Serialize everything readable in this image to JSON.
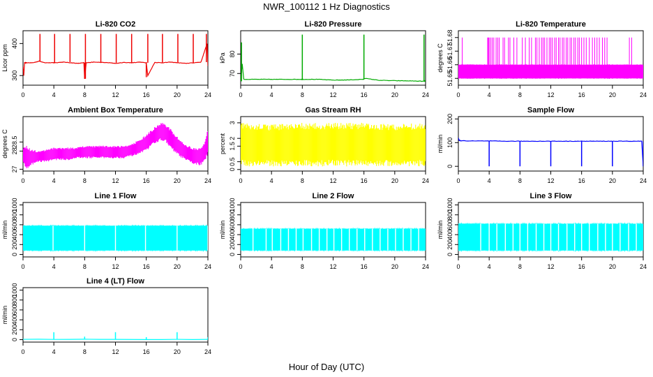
{
  "page": {
    "title": "NWR_100112  1 Hz Diagnostics",
    "x_title": "Hour of Day (UTC)"
  },
  "chart_data": [
    {
      "type": "line",
      "title": "Li-820 CO2",
      "ylabel": "Licor ppm",
      "color": "#ee0000",
      "xlim": [
        0,
        24
      ],
      "ylim": [
        270,
        440
      ],
      "yticks": [
        300,
        400
      ],
      "xticks": [
        0,
        4,
        8,
        12,
        16,
        20,
        24
      ],
      "x": [
        0,
        0.1,
        0.2,
        0.4,
        1.3,
        2.1,
        2.9,
        3.9,
        4.1,
        5.2,
        6.2,
        7.1,
        7.9,
        8.0,
        8.2,
        9.2,
        10.2,
        11.2,
        12.1,
        13.1,
        14.1,
        15.1,
        16.0,
        16.2,
        17.1,
        18.1,
        19.1,
        20.1,
        21.1,
        22.1,
        23.1,
        23.9,
        24
      ],
      "y": [
        330,
        300,
        340,
        340,
        340,
        345,
        340,
        340,
        340,
        342,
        340,
        338,
        340,
        290,
        340,
        342,
        341,
        340,
        338,
        341,
        340,
        342,
        340,
        300,
        341,
        340,
        342,
        340,
        338,
        340,
        342,
        400,
        330
      ],
      "spikes": [
        {
          "x": 0.15,
          "y": 300
        },
        {
          "x": 2.2,
          "y": 430
        },
        {
          "x": 4.1,
          "y": 430
        },
        {
          "x": 6.1,
          "y": 430
        },
        {
          "x": 8.1,
          "y": 430
        },
        {
          "x": 10.1,
          "y": 430
        },
        {
          "x": 12.1,
          "y": 430
        },
        {
          "x": 14.1,
          "y": 430
        },
        {
          "x": 16.2,
          "y": 430
        },
        {
          "x": 18.1,
          "y": 430
        },
        {
          "x": 20.1,
          "y": 430
        },
        {
          "x": 22.1,
          "y": 430
        },
        {
          "x": 23.8,
          "y": 430
        },
        {
          "x": 8.0,
          "y": 290
        },
        {
          "x": 16.0,
          "y": 295
        }
      ]
    },
    {
      "type": "line",
      "title": "Li-820 Pressure",
      "ylabel": "kPa",
      "color": "#00aa00",
      "xlim": [
        0,
        24
      ],
      "ylim": [
        64,
        92
      ],
      "yticks": [
        70,
        80
      ],
      "xticks": [
        0,
        4,
        8,
        12,
        16,
        20,
        24
      ],
      "x": [
        0,
        0.2,
        0.4,
        2,
        4,
        6,
        7.9,
        8.1,
        10,
        12,
        14,
        15.9,
        16.1,
        18,
        20,
        22,
        23.8,
        24
      ],
      "y": [
        66,
        75,
        67,
        67,
        67,
        67,
        67,
        67,
        67,
        66.6,
        66.7,
        67,
        67.5,
        66.5,
        66.3,
        66.2,
        66.0,
        66.2
      ],
      "spikes": [
        {
          "x": 0.1,
          "y": 86
        },
        {
          "x": 8.0,
          "y": 90
        },
        {
          "x": 16.0,
          "y": 90
        },
        {
          "x": 23.8,
          "y": 90
        }
      ]
    },
    {
      "type": "area",
      "title": "Li-820 Temperature",
      "ylabel": "degrees C",
      "color": "#ff00ff",
      "xlim": [
        0,
        24
      ],
      "ylim": [
        51.645,
        51.685
      ],
      "yticks": [
        51.65,
        51.66,
        51.67,
        51.68
      ],
      "xticks": [
        0,
        4,
        8,
        12,
        16,
        20,
        24
      ],
      "band": {
        "x_start": 0,
        "x_end": 24,
        "low": 51.65,
        "high": 51.66
      },
      "spike_top": 51.68,
      "spike_hours": [
        0.5,
        3.8,
        3.9,
        4.0,
        4.2,
        4.4,
        4.6,
        4.9,
        5.1,
        5.3,
        5.8,
        6.0,
        6.5,
        6.7,
        7.2,
        7.6,
        8.3,
        8.7,
        9.2,
        9.5,
        10.0,
        10.2,
        10.5,
        10.8,
        11.0,
        11.2,
        11.5,
        11.8,
        12.0,
        12.2,
        12.5,
        12.7,
        13.0,
        13.2,
        13.5,
        13.7,
        14.0,
        14.2,
        14.5,
        14.7,
        15.0,
        15.2,
        15.5,
        15.7,
        16.0,
        16.3,
        16.6,
        17.0,
        17.4,
        17.7,
        18.0,
        18.3,
        18.7,
        19.0,
        19.3,
        22.2,
        22.5
      ]
    },
    {
      "type": "area",
      "title": "Ambient Box Temperature",
      "ylabel": "degrees C",
      "color": "#ff00ff",
      "xlim": [
        0,
        24
      ],
      "ylim": [
        26.9,
        29.9
      ],
      "yticks": [
        27.0,
        28.0,
        28.5
      ],
      "xticks": [
        0,
        4,
        8,
        12,
        16,
        20,
        24
      ],
      "x": [
        0,
        0.5,
        1,
        2,
        3,
        4,
        5,
        6,
        7,
        8,
        9,
        10,
        11,
        12,
        13,
        14,
        15,
        16,
        17,
        18,
        18.5,
        19,
        20,
        21,
        22,
        23,
        23.6,
        24
      ],
      "low": [
        27.3,
        27.0,
        27.2,
        27.4,
        27.4,
        27.5,
        27.5,
        27.5,
        27.6,
        27.6,
        27.6,
        27.6,
        27.6,
        27.6,
        27.6,
        27.7,
        27.8,
        28.0,
        28.4,
        28.6,
        28.5,
        28.2,
        27.8,
        27.5,
        27.3,
        27.2,
        27.4,
        27.8
      ],
      "high": [
        28.2,
        28.3,
        28.1,
        28.0,
        28.1,
        28.2,
        28.2,
        28.2,
        28.2,
        28.3,
        28.3,
        28.3,
        28.3,
        28.3,
        28.3,
        28.4,
        28.6,
        28.9,
        29.3,
        29.6,
        29.5,
        29.3,
        28.8,
        28.4,
        28.2,
        28.2,
        28.5,
        29.3
      ]
    },
    {
      "type": "area",
      "title": "Gas Stream RH",
      "ylabel": "percent",
      "color": "#ffff00",
      "xlim": [
        0,
        24
      ],
      "ylim": [
        -0.1,
        3.4
      ],
      "yticks": [
        0.0,
        0.5,
        1.5,
        2.0,
        3.0
      ],
      "xticks": [
        0,
        4,
        8,
        12,
        16,
        20,
        24
      ],
      "x": [
        0,
        4,
        8,
        12,
        16,
        20,
        24
      ],
      "low": [
        0.2,
        0.2,
        0.2,
        0.2,
        0.2,
        0.2,
        0.2
      ],
      "high": [
        3.0,
        2.9,
        3.0,
        3.0,
        3.0,
        2.9,
        3.0
      ]
    },
    {
      "type": "line",
      "title": "Sample Flow",
      "ylabel": "ml/min",
      "color": "#0000ff",
      "xlim": [
        0,
        24
      ],
      "ylim": [
        -20,
        210
      ],
      "yticks": [
        0,
        100,
        200
      ],
      "xticks": [
        0,
        4,
        8,
        12,
        16,
        20,
        24
      ],
      "x": [
        0,
        0.1,
        0.3,
        2,
        4,
        6,
        8,
        10,
        12,
        14,
        16,
        18,
        20,
        22,
        23.8,
        24
      ],
      "y": [
        120,
        110,
        108,
        107,
        107,
        106,
        106,
        106,
        106,
        106,
        106,
        106,
        106,
        106,
        106,
        0
      ],
      "spikes": [
        {
          "x": 4.0,
          "y": 0
        },
        {
          "x": 8.0,
          "y": 0
        },
        {
          "x": 12.0,
          "y": 0
        },
        {
          "x": 16.0,
          "y": 0
        },
        {
          "x": 20.0,
          "y": 0
        },
        {
          "x": 24.0,
          "y": 0
        }
      ]
    },
    {
      "type": "area",
      "title": "Line 1 Flow",
      "ylabel": "ml/min",
      "color": "#00ffff",
      "xlim": [
        0,
        24
      ],
      "ylim": [
        -50,
        1050
      ],
      "yticks": [
        0,
        200,
        400,
        600,
        800,
        1000
      ],
      "xticks": [
        0,
        4,
        8,
        12,
        16,
        20,
        24
      ],
      "band": {
        "x_start": 0,
        "x_end": 24,
        "low": 80,
        "high": 580
      },
      "gaps": [
        3.9,
        8.0,
        12.0,
        15.9,
        20.0,
        24.0
      ]
    },
    {
      "type": "area",
      "title": "Line 2 Flow",
      "ylabel": "ml/min",
      "color": "#00ffff",
      "xlim": [
        0,
        24
      ],
      "ylim": [
        -50,
        1050
      ],
      "yticks": [
        0,
        200,
        400,
        600,
        800,
        1000
      ],
      "xticks": [
        0,
        4,
        8,
        12,
        16,
        20,
        24
      ],
      "band": {
        "x_start": 0,
        "x_end": 24,
        "low": 80,
        "high": 520
      },
      "gaps": [
        1.6,
        3.3,
        4.1,
        5.2,
        6.2,
        7.2,
        8.1,
        9.2,
        10.2,
        11.2,
        12.1,
        13.1,
        14.1,
        15.1,
        16.1,
        17.1,
        18.1,
        19.1,
        20.1,
        21.1,
        22.1,
        23.1
      ]
    },
    {
      "type": "area",
      "title": "Line 3 Flow",
      "ylabel": "ml/min",
      "color": "#00ffff",
      "xlim": [
        0,
        24
      ],
      "ylim": [
        -50,
        1050
      ],
      "yticks": [
        0,
        200,
        400,
        600,
        800,
        1000
      ],
      "xticks": [
        0,
        4,
        8,
        12,
        16,
        20,
        24
      ],
      "band": {
        "x_start": 0,
        "x_end": 24,
        "low": 80,
        "high": 620
      },
      "gaps": [
        2.9,
        4.0,
        5.0,
        6.1,
        7.1,
        8.0,
        9.0,
        10.1,
        11.1,
        12.0,
        13.0,
        14.1,
        15.1,
        16.0,
        17.0,
        18.1,
        19.1,
        20.0,
        21.0,
        22.1,
        23.1
      ]
    },
    {
      "type": "line",
      "title": "Line 4 (LT) Flow",
      "ylabel": "ml/min",
      "color": "#00ffff",
      "xlim": [
        0,
        24
      ],
      "ylim": [
        -50,
        1050
      ],
      "yticks": [
        0,
        200,
        400,
        600,
        800,
        1000
      ],
      "xticks": [
        0,
        4,
        8,
        12,
        16,
        20,
        24
      ],
      "x": [
        0,
        24
      ],
      "y": [
        5,
        5
      ],
      "spikes": [
        {
          "x": 4.0,
          "y": 150
        },
        {
          "x": 8.0,
          "y": 60
        },
        {
          "x": 12.0,
          "y": 150
        },
        {
          "x": 16.0,
          "y": 50
        },
        {
          "x": 20.0,
          "y": 150
        },
        {
          "x": 24.0,
          "y": 50
        }
      ]
    }
  ]
}
